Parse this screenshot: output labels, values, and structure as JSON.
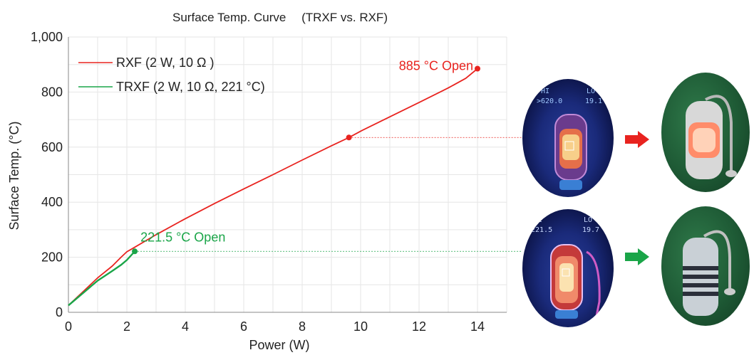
{
  "chart_data": {
    "type": "line",
    "title": "Surface Temp. Curve 　(TRXF vs. RXF)",
    "xlabel": "Power (W)",
    "ylabel": "Surface Temp. (°C)",
    "xlim": [
      0,
      15
    ],
    "ylim": [
      0,
      1000
    ],
    "xticks": [
      "0",
      "2",
      "4",
      "6",
      "8",
      "10",
      "12",
      "14"
    ],
    "yticks": [
      "0",
      "200",
      "400",
      "600",
      "800",
      "1,000"
    ],
    "grid": true,
    "legend_position": "top-left",
    "series": [
      {
        "name": "RXF (2 W, 10 Ω )",
        "color": "#e8231f",
        "x": [
          0,
          0.5,
          1,
          1.5,
          1.8,
          2,
          2.2,
          3,
          4,
          5,
          6,
          7,
          8,
          9,
          9.6,
          10,
          11,
          12,
          13,
          13.6,
          14
        ],
        "y": [
          25,
          75,
          125,
          168,
          200,
          220,
          232,
          282,
          340,
          395,
          448,
          500,
          553,
          605,
          635,
          658,
          710,
          762,
          815,
          850,
          885
        ]
      },
      {
        "name": "TRXF (2 W, 10 Ω, 221 °C)",
        "color": "#1aa548",
        "x": [
          0,
          0.5,
          1,
          1.5,
          1.8,
          2,
          2.27
        ],
        "y": [
          25,
          70,
          115,
          150,
          172,
          190,
          221.5
        ]
      }
    ],
    "annotations": [
      {
        "text": "885 °C Open",
        "x": 14,
        "y": 885,
        "color": "#e8231f"
      },
      {
        "text": "221.5 °C  Open",
        "x": 2.27,
        "y": 221.5,
        "color": "#1aa548"
      }
    ],
    "reference_points": [
      {
        "x": 9.6,
        "y": 635,
        "color": "#e8231f"
      },
      {
        "x": 2.27,
        "y": 221.5,
        "color": "#1aa548"
      }
    ]
  },
  "thermal_images": [
    {
      "hi_label": "HI",
      "hi_value": ">620.0",
      "lo_label": "LO",
      "lo_value": "19.1"
    },
    {
      "hi_label": "HI",
      "hi_value": "221.5",
      "lo_label": "LO",
      "lo_value": "19.7"
    }
  ],
  "arrow_colors": [
    "#e8231f",
    "#1aa548"
  ]
}
